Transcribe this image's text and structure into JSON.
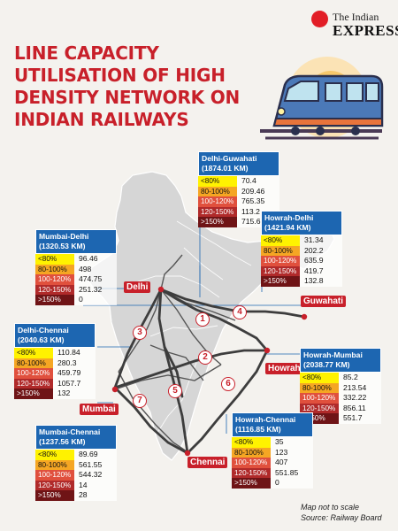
{
  "brand": {
    "line1": "The Indian",
    "line2": "EXPRESS"
  },
  "title_lines": [
    "LINE CAPACITY",
    "UTILISATION OF HIGH",
    "DENSITY NETWORK ON",
    "INDIAN RAILWAYS"
  ],
  "colors": {
    "title": "#c8202a",
    "header": "#1d66b1",
    "route": "#c8202a",
    "land": "#d6d6d6"
  },
  "categories": [
    "<80%",
    "80-100%",
    "100-120%",
    "120-150%",
    ">150%"
  ],
  "routes": [
    {
      "name": "Delhi-Guwahati",
      "length": "(1874.01 KM)",
      "values": [
        "70.4",
        "209.46",
        "765.35",
        "113.2",
        "715.6"
      ]
    },
    {
      "name": "Howrah-Delhi",
      "length": "(1421.94 KM)",
      "values": [
        "31.34",
        "202.2",
        "635.9",
        "419.7",
        "132.8"
      ]
    },
    {
      "name": "Mumbai-Delhi",
      "length": "(1320.53 KM)",
      "values": [
        "96.46",
        "498",
        "474.75",
        "251.32",
        "0"
      ]
    },
    {
      "name": "Delhi-Chennai",
      "length": "(2040.63 KM)",
      "values": [
        "110.84",
        "280.3",
        "459.79",
        "1057.7",
        "132"
      ]
    },
    {
      "name": "Howrah-Mumbai",
      "length": "(2038.77 KM)",
      "values": [
        "85.2",
        "213.54",
        "332.22",
        "856.11",
        "551.7"
      ]
    },
    {
      "name": "Howrah-Chennai",
      "length": "(1116.85 KM)",
      "values": [
        "35",
        "123",
        "407",
        "551.85",
        "0"
      ]
    },
    {
      "name": "Mumbai-Chennai",
      "length": "(1237.56 KM)",
      "values": [
        "89.69",
        "561.55",
        "544.32",
        "14",
        "28"
      ]
    }
  ],
  "cities": [
    "Delhi",
    "Guwahati",
    "Howrah",
    "Mumbai",
    "Chennai"
  ],
  "route_numbers": [
    "1",
    "2",
    "3",
    "4",
    "5",
    "6",
    "7"
  ],
  "notes": {
    "scale": "Map not to scale",
    "source": "Source: Railway Board"
  }
}
